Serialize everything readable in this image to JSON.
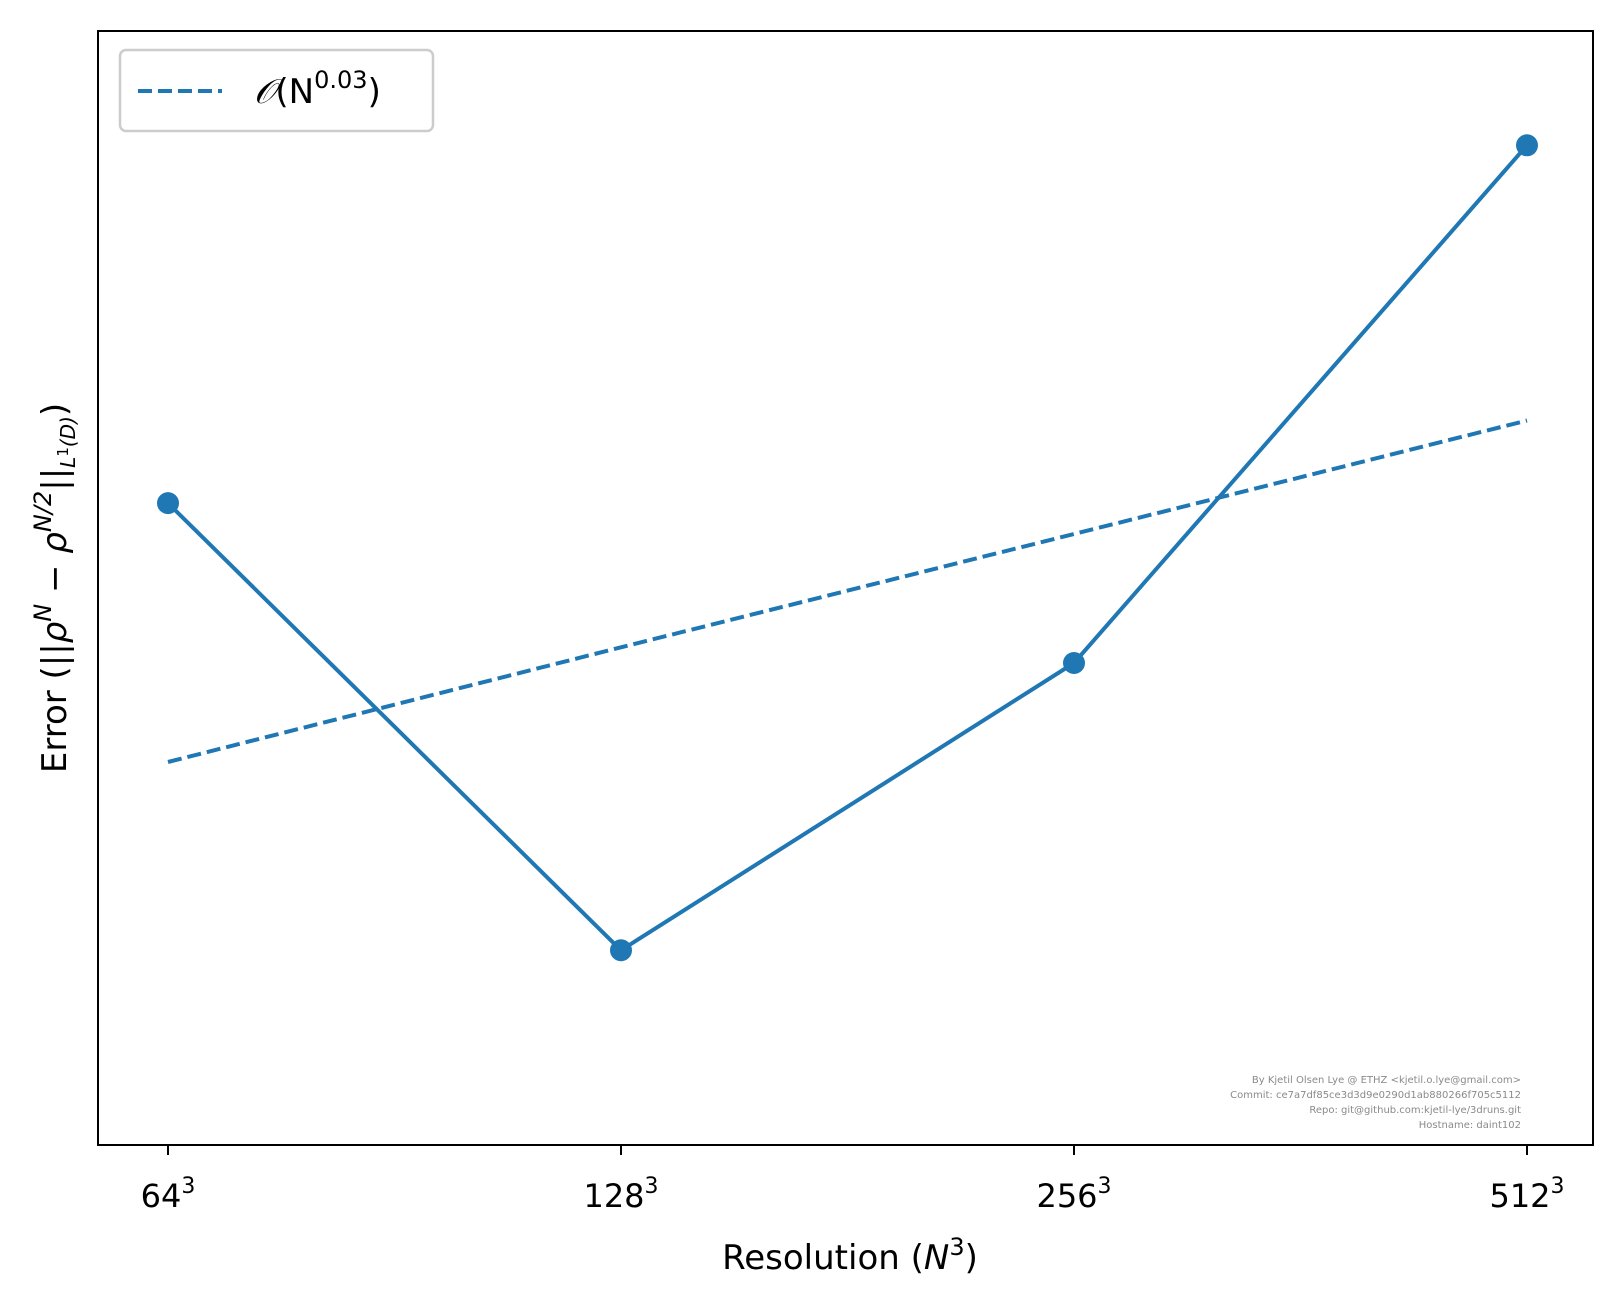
{
  "chart_data": {
    "type": "line",
    "categories": [
      "64",
      "128",
      "256",
      "512"
    ],
    "tick_exponent": "3",
    "xlabel": {
      "prefix": "Resolution (",
      "var": "N",
      "exp": "3",
      "suffix": ")"
    },
    "ylabel": {
      "prefix": "Error (||",
      "rho": "ρ",
      "exp1": "N",
      "minus": " − ",
      "exp2": "N/2",
      "norm": "||",
      "sub": "L",
      "sub_exp": "1",
      "sub_tail": "(D)",
      "suffix": ")"
    },
    "yscale": "log",
    "ylim": [
      0.7,
      1.3
    ],
    "grid": false,
    "series": [
      {
        "values": [
          1.0,
          0.78,
          0.915,
          1.22
        ],
        "style": "solid",
        "marker": "circle",
        "color": "#1f77b4"
      },
      {
        "name": "O(N^0.03)",
        "values": [
          0.866,
          0.923,
          0.983,
          1.047
        ],
        "style": "dashed",
        "marker": "none",
        "color": "#1f77b4"
      }
    ],
    "legend": {
      "position": "top-left",
      "label_symbol": "𝒪",
      "label_open": "(N",
      "label_exp": "0.03",
      "label_close": ")"
    },
    "credits": [
      "By Kjetil Olsen Lye @ ETHZ <kjetil.o.lye@gmail.com>",
      "Commit: ce7a7df85ce3d3d9e0290d1ab880266f705c5112",
      "Repo: git@github.com:kjetil-lye/3druns.git",
      "Hostname: daint102"
    ]
  }
}
